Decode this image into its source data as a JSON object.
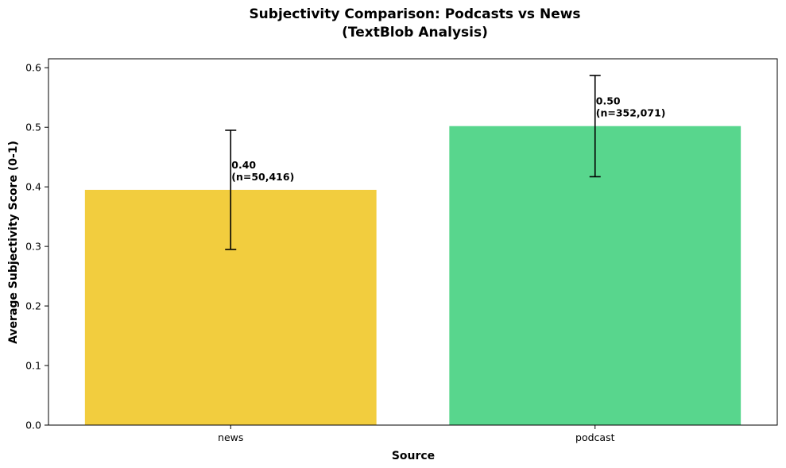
{
  "chart_data": {
    "type": "bar",
    "title_line1": "Subjectivity Comparison: Podcasts vs News",
    "title_line2": "(TextBlob Analysis)",
    "xlabel": "Source",
    "ylabel": "Average Subjectivity Score (0-1)",
    "categories": [
      "news",
      "podcast"
    ],
    "values": [
      0.395,
      0.502
    ],
    "errors": [
      0.1,
      0.085
    ],
    "colors": [
      "#f2cd3e",
      "#58d68d"
    ],
    "annotations": [
      {
        "value_text": "0.40",
        "count_text": "(n=50,416)"
      },
      {
        "value_text": "0.50",
        "count_text": "(n=352,071)"
      }
    ],
    "ylim": [
      0,
      0.615
    ],
    "yticks": [
      0.0,
      0.1,
      0.2,
      0.3,
      0.4,
      0.5,
      0.6
    ],
    "ytick_labels": [
      "0.0",
      "0.1",
      "0.2",
      "0.3",
      "0.4",
      "0.5",
      "0.6"
    ],
    "grid": false,
    "legend": "none"
  }
}
